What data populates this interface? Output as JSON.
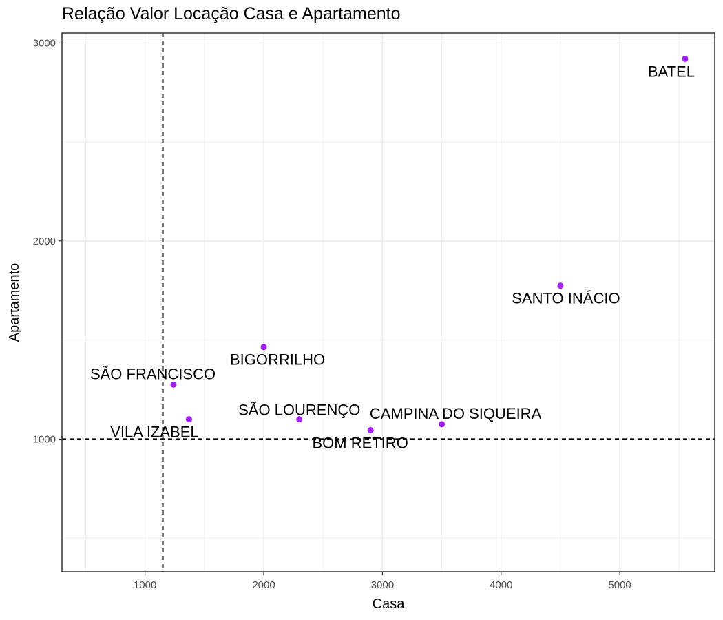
{
  "chart_data": {
    "type": "scatter",
    "title": "Relação Valor Locação Casa e Apartamento",
    "xlabel": "Casa",
    "ylabel": "Apartamento",
    "xlim": [
      300,
      5800
    ],
    "ylim": [
      330,
      3050
    ],
    "x_ticks": [
      1000,
      2000,
      3000,
      4000,
      5000
    ],
    "y_ticks": [
      1000,
      2000,
      3000
    ],
    "grid": true,
    "point_color": "#a020f0",
    "reference_lines": {
      "vertical_x": 1150,
      "horizontal_y": 1000
    },
    "points": [
      {
        "label": "BATEL",
        "x": 5550,
        "y": 2920
      },
      {
        "label": "SANTO INÁCIO",
        "x": 4500,
        "y": 1775
      },
      {
        "label": "BIGORRILHO",
        "x": 2000,
        "y": 1465
      },
      {
        "label": "SÃO FRANCISCO",
        "x": 1240,
        "y": 1275
      },
      {
        "label": "VILA IZABEL",
        "x": 1370,
        "y": 1100
      },
      {
        "label": "SÃO LOURENÇO",
        "x": 2300,
        "y": 1100
      },
      {
        "label": "CAMPINA DO SIQUEIRA",
        "x": 3500,
        "y": 1075
      },
      {
        "label": "BOM RETIRO",
        "x": 2900,
        "y": 1045
      }
    ]
  }
}
